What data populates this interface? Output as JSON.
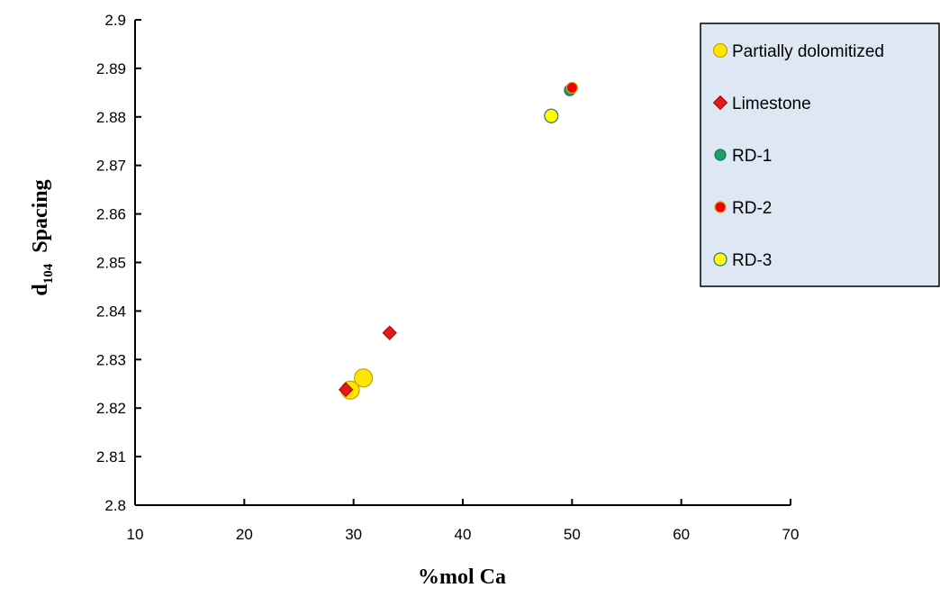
{
  "chart_data": {
    "type": "scatter",
    "xlabel": "%mol Ca",
    "ylabel_main": "d",
    "ylabel_sub": "104",
    "ylabel_rest": "  Spacing",
    "xlim": [
      10,
      70
    ],
    "ylim": [
      2.8,
      2.9
    ],
    "x_ticks": [
      "10",
      "20",
      "30",
      "40",
      "50",
      "60",
      "70"
    ],
    "y_ticks": [
      "2.8",
      "2.81",
      "2.82",
      "2.83",
      "2.84",
      "2.85",
      "2.86",
      "2.87",
      "2.88",
      "2.89",
      "2.9"
    ],
    "grid": false,
    "legend_position": "top-right",
    "series": [
      {
        "name": "Partially dolomitized",
        "marker": "circle-large",
        "color": "#FFE600",
        "edge": "#C9A000",
        "points": [
          {
            "x": 29.7,
            "y": 2.8237
          },
          {
            "x": 30.9,
            "y": 2.8262
          }
        ]
      },
      {
        "name": "Limestone",
        "marker": "diamond",
        "color": "#E31A1C",
        "edge": "#B00000",
        "points": [
          {
            "x": 29.3,
            "y": 2.8238
          },
          {
            "x": 33.3,
            "y": 2.8355
          }
        ]
      },
      {
        "name": "RD-1",
        "marker": "circle",
        "color": "#1E9E6E",
        "edge": "#137050",
        "points": [
          {
            "x": 49.8,
            "y": 2.8855
          }
        ]
      },
      {
        "name": "RD-2",
        "marker": "circle",
        "color": "#F20000",
        "edge": "#E8A000",
        "points": [
          {
            "x": 50.0,
            "y": 2.886
          }
        ]
      },
      {
        "name": "RD-3",
        "marker": "circle-medium",
        "color": "#FFFF00",
        "edge": "#3A6E8C",
        "points": [
          {
            "x": 48.1,
            "y": 2.8802
          }
        ]
      }
    ]
  }
}
